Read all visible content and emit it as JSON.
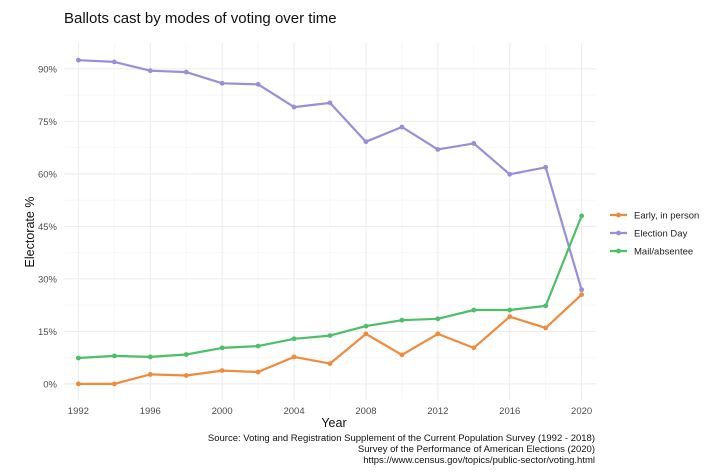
{
  "chart_data": {
    "type": "line",
    "title": "Ballots cast by modes of voting over time",
    "xlabel": "Year",
    "ylabel": "Electorate %",
    "x": [
      1992,
      1994,
      1996,
      1998,
      2000,
      2002,
      2004,
      2006,
      2008,
      2010,
      2012,
      2014,
      2016,
      2018,
      2020
    ],
    "xticks": [
      1992,
      1996,
      2000,
      2004,
      2008,
      2012,
      2016,
      2020
    ],
    "xtick_labels": [
      "1992",
      "1996",
      "2000",
      "2004",
      "2008",
      "2012",
      "2016",
      "2020"
    ],
    "xlim": [
      1991.2,
      2020.8
    ],
    "yticks": [
      0,
      15,
      30,
      45,
      60,
      75,
      90
    ],
    "ytick_labels": [
      "0%",
      "15%",
      "30%",
      "45%",
      "60%",
      "75%",
      "90%"
    ],
    "ylim": [
      -4.6,
      97.4
    ],
    "grid": true,
    "legend_position": "right",
    "series": [
      {
        "name": "Early, in person",
        "color": "#f08a3c",
        "values": [
          0.0,
          0.0,
          2.7,
          2.4,
          3.8,
          3.4,
          7.7,
          5.8,
          14.3,
          8.3,
          14.3,
          10.3,
          19.2,
          16.0,
          25.5
        ]
      },
      {
        "name": "Election Day",
        "color": "#9b8ed8",
        "values": [
          92.5,
          92.0,
          89.5,
          89.1,
          85.9,
          85.6,
          79.1,
          80.3,
          69.2,
          73.4,
          67.0,
          68.7,
          59.9,
          61.9,
          26.9
        ]
      },
      {
        "name": "Mail/absentee",
        "color": "#4dbf68",
        "values": [
          7.4,
          8.0,
          7.7,
          8.4,
          10.3,
          10.8,
          12.9,
          13.8,
          16.5,
          18.2,
          18.6,
          21.1,
          21.1,
          22.3,
          48.0
        ]
      }
    ],
    "caption": [
      "Source: Voting and Registration Supplement of the Current Population Survey (1992 - 2018)",
      "Survey of the Performance of American Elections (2020)",
      "https://www.census.gov/topics/public-sector/voting.html"
    ]
  }
}
